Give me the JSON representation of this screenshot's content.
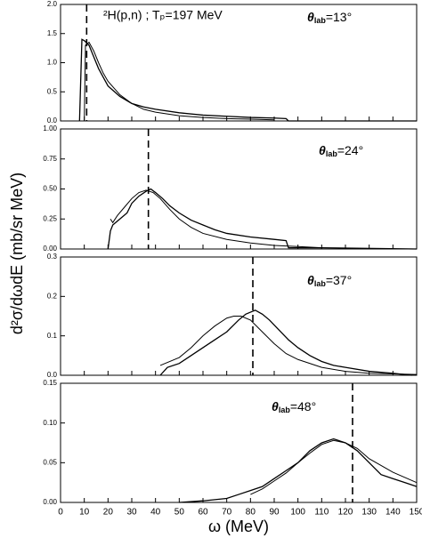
{
  "chart_data": [
    {
      "type": "line",
      "reaction_label": "²H(p,n) ; Tₚ=197 MeV",
      "angle_label": [
        "θ",
        "lab",
        "=13°"
      ],
      "y_label": "d²σ/dωdE (mb/sr MeV)",
      "xlim": [
        0,
        150
      ],
      "xticks": [
        0,
        10,
        20,
        30,
        40,
        50,
        60,
        70,
        80,
        90,
        100,
        110,
        120,
        130,
        140,
        150
      ],
      "ylim": [
        0,
        2
      ],
      "yticks": [
        {
          "value": 0,
          "label": "0.0"
        },
        {
          "value": 0.5,
          "label": "0.5"
        },
        {
          "value": 1,
          "label": "1.0"
        },
        {
          "value": 1.5,
          "label": "1.5"
        },
        {
          "value": 2,
          "label": "2.0"
        }
      ],
      "marker_x": 11,
      "series": [
        {
          "color": "#000000",
          "x": [
            8,
            9,
            10,
            12,
            14,
            16,
            18,
            20,
            25,
            30,
            35,
            40,
            50,
            60,
            70,
            80,
            90,
            95,
            96,
            150
          ],
          "values": [
            0,
            1.4,
            1.38,
            1.3,
            1.1,
            0.9,
            0.75,
            0.6,
            0.42,
            0.3,
            0.24,
            0.2,
            0.14,
            0.1,
            0.08,
            0.06,
            0.05,
            0.04,
            0,
            0
          ]
        },
        {
          "color": "#000000",
          "x": [
            10,
            10.5,
            12,
            14,
            16,
            18,
            20,
            25,
            30,
            35,
            40,
            50,
            60,
            70,
            80,
            90
          ],
          "values": [
            0,
            1.3,
            1.35,
            1.2,
            1.0,
            0.82,
            0.68,
            0.45,
            0.3,
            0.2,
            0.15,
            0.09,
            0.06,
            0.04,
            0.03,
            0.02
          ]
        }
      ]
    },
    {
      "type": "line",
      "angle_label": [
        "θ",
        "lab",
        "=24°"
      ],
      "xlim": [
        0,
        150
      ],
      "xticks": [
        0,
        10,
        20,
        30,
        40,
        50,
        60,
        70,
        80,
        90,
        100,
        110,
        120,
        130,
        140,
        150
      ],
      "ylim": [
        0,
        1
      ],
      "yticks": [
        {
          "value": 0,
          "label": "0.00"
        },
        {
          "value": 0.25,
          "label": "0.25"
        },
        {
          "value": 0.5,
          "label": "0.50"
        },
        {
          "value": 0.75,
          "label": "0.75"
        },
        {
          "value": 1,
          "label": "1.00"
        }
      ],
      "marker_x": 37,
      "series": [
        {
          "color": "#000000",
          "x": [
            20,
            21,
            22,
            25,
            28,
            30,
            33,
            36,
            38,
            40,
            43,
            46,
            50,
            55,
            60,
            65,
            70,
            80,
            90,
            95,
            96,
            110,
            150
          ],
          "values": [
            0,
            0.15,
            0.2,
            0.25,
            0.3,
            0.38,
            0.44,
            0.48,
            0.5,
            0.47,
            0.42,
            0.36,
            0.3,
            0.24,
            0.2,
            0.16,
            0.13,
            0.1,
            0.08,
            0.07,
            0.01,
            0.01,
            0
          ]
        },
        {
          "color": "#000000",
          "x": [
            21,
            22,
            24,
            27,
            30,
            33,
            36,
            39,
            42,
            46,
            50,
            55,
            60,
            70,
            80,
            90,
            100,
            110
          ],
          "values": [
            0.25,
            0.22,
            0.28,
            0.35,
            0.42,
            0.47,
            0.49,
            0.47,
            0.42,
            0.33,
            0.25,
            0.18,
            0.13,
            0.08,
            0.05,
            0.03,
            0.02,
            0.01
          ]
        }
      ]
    },
    {
      "type": "line",
      "angle_label": [
        "θ",
        "lab",
        "=37°"
      ],
      "xlim": [
        0,
        150
      ],
      "xticks": [
        0,
        10,
        20,
        30,
        40,
        50,
        60,
        70,
        80,
        90,
        100,
        110,
        120,
        130,
        140,
        150
      ],
      "ylim": [
        0,
        0.3
      ],
      "yticks": [
        {
          "value": 0,
          "label": "0.0"
        },
        0.1,
        0.2,
        0.3
      ],
      "marker_x": 81,
      "series": [
        {
          "color": "#000000",
          "x": [
            42,
            45,
            50,
            55,
            60,
            65,
            70,
            75,
            78,
            80,
            82,
            85,
            88,
            92,
            96,
            100,
            105,
            110,
            115,
            120,
            130,
            140,
            148
          ],
          "values": [
            0,
            0.02,
            0.03,
            0.05,
            0.07,
            0.09,
            0.11,
            0.14,
            0.155,
            0.16,
            0.165,
            0.155,
            0.14,
            0.115,
            0.09,
            0.07,
            0.05,
            0.035,
            0.025,
            0.02,
            0.01,
            0.005,
            0
          ]
        },
        {
          "color": "#000000",
          "x": [
            42,
            50,
            55,
            60,
            65,
            70,
            73,
            76,
            80,
            85,
            90,
            95,
            100,
            110,
            120,
            130,
            150
          ],
          "values": [
            0.025,
            0.045,
            0.07,
            0.1,
            0.125,
            0.145,
            0.15,
            0.15,
            0.14,
            0.11,
            0.08,
            0.055,
            0.04,
            0.02,
            0.01,
            0.005,
            0.002
          ]
        }
      ]
    },
    {
      "type": "line",
      "angle_label": [
        "θ",
        "lab",
        "=48°"
      ],
      "x_label": "ω (MeV)",
      "xlim": [
        0,
        150
      ],
      "xticks": [
        0,
        10,
        20,
        30,
        40,
        50,
        60,
        70,
        80,
        90,
        100,
        110,
        120,
        130,
        140,
        150
      ],
      "ylim": [
        0,
        0.15
      ],
      "yticks": [
        {
          "value": 0,
          "label": "0.00"
        },
        0.05,
        {
          "value": 0.1,
          "label": "0.10"
        },
        0.15
      ],
      "marker_x": 123,
      "series": [
        {
          "color": "#000000",
          "x": [
            50,
            60,
            70,
            75,
            80,
            85,
            90,
            95,
            100,
            105,
            110,
            115,
            120,
            125,
            130,
            135,
            140,
            145,
            150
          ],
          "values": [
            0,
            0.002,
            0.005,
            0.01,
            0.015,
            0.02,
            0.03,
            0.04,
            0.05,
            0.065,
            0.075,
            0.08,
            0.075,
            0.065,
            0.05,
            0.035,
            0.03,
            0.025,
            0.02
          ]
        },
        {
          "color": "#000000",
          "x": [
            80,
            85,
            90,
            95,
            100,
            105,
            110,
            115,
            120,
            125,
            130,
            140,
            150
          ],
          "values": [
            0.01,
            0.017,
            0.027,
            0.037,
            0.05,
            0.062,
            0.073,
            0.078,
            0.075,
            0.068,
            0.055,
            0.038,
            0.025
          ]
        }
      ]
    }
  ]
}
